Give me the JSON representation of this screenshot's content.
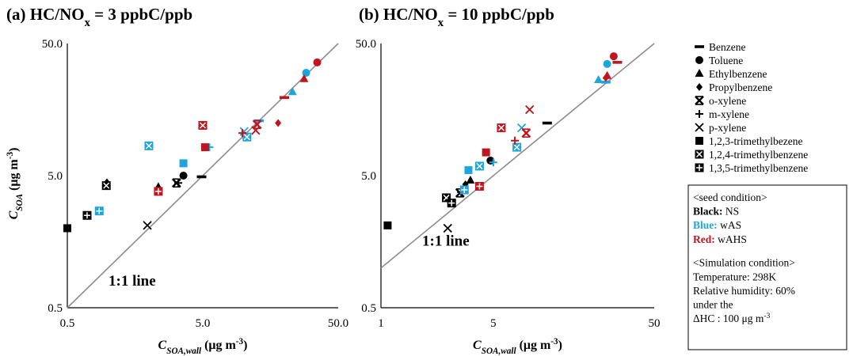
{
  "chart_data": [
    {
      "type": "scatter",
      "title": "(a) HC/NOx = 3 ppbC/ppb",
      "xlabel": "CSOA,wall (μg m-3)",
      "ylabel": "CSOA (μg m-3)",
      "xscale": "log",
      "yscale": "log",
      "xlim": [
        0.5,
        50
      ],
      "ylim": [
        0.5,
        50
      ],
      "xticks": [
        "0.5",
        "5.0",
        "50.0"
      ],
      "yticks": [
        "0.5",
        "5.0",
        "50.0"
      ],
      "reference_line": "1:1 line",
      "points": [
        {
          "compound": "benzene",
          "seed": "NS",
          "x": 4.9,
          "y": 4.9
        },
        {
          "compound": "toluene",
          "seed": "NS",
          "x": 3.6,
          "y": 5.0
        },
        {
          "compound": "ethylbenzene",
          "seed": "NS",
          "x": 2.35,
          "y": 4.1
        },
        {
          "compound": "propylbenzene",
          "seed": "NS",
          "x": 0.98,
          "y": 4.45
        },
        {
          "compound": "o-xylene",
          "seed": "NS",
          "x": 3.2,
          "y": 4.4
        },
        {
          "compound": "m-xylene",
          "seed": "NS",
          "x": 3.3,
          "y": 4.4
        },
        {
          "compound": "p-xylene",
          "seed": "NS",
          "x": 1.95,
          "y": 2.1
        },
        {
          "compound": "1,2,3-trimethylbezene",
          "seed": "NS",
          "x": 0.5,
          "y": 2.0
        },
        {
          "compound": "1,2,4-trimethylbenzene",
          "seed": "NS",
          "x": 0.97,
          "y": 4.2
        },
        {
          "compound": "1,3,5-trimethylbenzene",
          "seed": "NS",
          "x": 0.7,
          "y": 2.5
        },
        {
          "compound": "benzene",
          "seed": "wAS",
          "x": 13,
          "y": 13
        },
        {
          "compound": "toluene",
          "seed": "wAS",
          "x": 29,
          "y": 30
        },
        {
          "compound": "ethylbenzene",
          "seed": "wAS",
          "x": 23,
          "y": 21.5
        },
        {
          "compound": "m-xylene",
          "seed": "wAS",
          "x": 5.6,
          "y": 8.2
        },
        {
          "compound": "p-xylene",
          "seed": "wAS",
          "x": 10.1,
          "y": 10.8
        },
        {
          "compound": "1,2,3-trimethylbezene",
          "seed": "wAS",
          "x": 3.6,
          "y": 6.2
        },
        {
          "compound": "1,2,4-trimethylbenzene",
          "seed": "wAS",
          "x": 2.0,
          "y": 8.4
        },
        {
          "compound": "1,3,5-trimethylbenzene",
          "seed": "wAS",
          "x": 0.86,
          "y": 2.7
        },
        {
          "compound": "1,2,4-trimethylbenzene",
          "seed": "wAS",
          "x": 10.6,
          "y": 9.8
        },
        {
          "compound": "benzene",
          "seed": "wAHS",
          "x": 20,
          "y": 19.5
        },
        {
          "compound": "toluene",
          "seed": "wAHS",
          "x": 35,
          "y": 36
        },
        {
          "compound": "ethylbenzene",
          "seed": "wAHS",
          "x": 28,
          "y": 27
        },
        {
          "compound": "propylbenzene",
          "seed": "wAHS",
          "x": 18,
          "y": 12.5
        },
        {
          "compound": "o-xylene",
          "seed": "wAHS",
          "x": 12.6,
          "y": 12.2
        },
        {
          "compound": "m-xylene",
          "seed": "wAHS",
          "x": 9.8,
          "y": 10.5
        },
        {
          "compound": "1,2,3-trimethylbezene",
          "seed": "wAHS",
          "x": 5.2,
          "y": 8.2
        },
        {
          "compound": "1,2,4-trimethylbenzene",
          "seed": "wAHS",
          "x": 5.0,
          "y": 12.0
        },
        {
          "compound": "1,3,5-trimethylbenzene",
          "seed": "wAHS",
          "x": 2.35,
          "y": 3.8
        },
        {
          "compound": "p-xylene",
          "seed": "wAHS",
          "x": 12.3,
          "y": 11.0
        }
      ]
    },
    {
      "type": "scatter",
      "title": "(b) HC/NOx = 10 ppbC/ppb",
      "xlabel": "CSOA,wall (μg m-3)",
      "ylabel": "",
      "xscale": "log",
      "yscale": "log",
      "xlim": [
        1,
        50
      ],
      "ylim": [
        0.5,
        50
      ],
      "xticks": [
        "1",
        "5",
        "50"
      ],
      "yticks": [
        "0.5",
        "5.0",
        "50.0"
      ],
      "reference_line": "1:1 line",
      "points": [
        {
          "compound": "benzene",
          "seed": "NS",
          "x": 10.8,
          "y": 12.5
        },
        {
          "compound": "toluene",
          "seed": "NS",
          "x": 4.8,
          "y": 6.5
        },
        {
          "compound": "ethylbenzene",
          "seed": "NS",
          "x": 3.6,
          "y": 4.6
        },
        {
          "compound": "propylbenzene",
          "seed": "NS",
          "x": 3.35,
          "y": 4.3
        },
        {
          "compound": "o-xylene",
          "seed": "NS",
          "x": 3.1,
          "y": 3.7
        },
        {
          "compound": "m-xylene",
          "seed": "NS",
          "x": 3.15,
          "y": 3.75
        },
        {
          "compound": "p-xylene",
          "seed": "NS",
          "x": 2.6,
          "y": 2.0
        },
        {
          "compound": "1,2,3-trimethylbezene",
          "seed": "NS",
          "x": 1.1,
          "y": 2.1
        },
        {
          "compound": "1,2,4-trimethylbenzene",
          "seed": "NS",
          "x": 2.55,
          "y": 3.4
        },
        {
          "compound": "1,3,5-trimethylbenzene",
          "seed": "NS",
          "x": 2.75,
          "y": 3.1
        },
        {
          "compound": "benzene",
          "seed": "wAS",
          "x": 25,
          "y": 25.5
        },
        {
          "compound": "toluene",
          "seed": "wAS",
          "x": 25.5,
          "y": 35
        },
        {
          "compound": "ethylbenzene",
          "seed": "wAS",
          "x": 22.5,
          "y": 26.5
        },
        {
          "compound": "m-xylene",
          "seed": "wAS",
          "x": 5.0,
          "y": 6.3
        },
        {
          "compound": "p-xylene",
          "seed": "wAS",
          "x": 7.5,
          "y": 11.5
        },
        {
          "compound": "1,2,3-trimethylbezene",
          "seed": "wAS",
          "x": 3.5,
          "y": 5.5
        },
        {
          "compound": "1,2,4-trimethylbenzene",
          "seed": "wAS",
          "x": 4.1,
          "y": 5.9
        },
        {
          "compound": "1,3,5-trimethylbenzene",
          "seed": "wAS",
          "x": 3.3,
          "y": 3.9
        },
        {
          "compound": "1,2,4-trimethylbenzene",
          "seed": "wAS",
          "x": 7.0,
          "y": 8.2
        },
        {
          "compound": "benzene",
          "seed": "wAHS",
          "x": 29.5,
          "y": 36
        },
        {
          "compound": "toluene",
          "seed": "wAHS",
          "x": 28,
          "y": 40
        },
        {
          "compound": "ethylbenzene",
          "seed": "wAHS",
          "x": 25.5,
          "y": 28.5
        },
        {
          "compound": "propylbenzene",
          "seed": "wAHS",
          "x": 25.0,
          "y": 27.5
        },
        {
          "compound": "o-xylene",
          "seed": "wAHS",
          "x": 8.0,
          "y": 10.5
        },
        {
          "compound": "m-xylene",
          "seed": "wAHS",
          "x": 6.8,
          "y": 9.2
        },
        {
          "compound": "1,2,3-trimethylbezene",
          "seed": "wAHS",
          "x": 4.5,
          "y": 7.5
        },
        {
          "compound": "1,2,4-trimethylbenzene",
          "seed": "wAHS",
          "x": 5.6,
          "y": 11.5
        },
        {
          "compound": "1,3,5-trimethylbenzene",
          "seed": "wAHS",
          "x": 4.1,
          "y": 4.15
        },
        {
          "compound": "p-xylene",
          "seed": "wAHS",
          "x": 8.4,
          "y": 15.8
        }
      ]
    }
  ],
  "legend": {
    "items": [
      {
        "key": "benzene",
        "label": "Benzene",
        "icon": "dash-marker"
      },
      {
        "key": "toluene",
        "label": "Toluene",
        "icon": "circle-marker"
      },
      {
        "key": "ethylbenzene",
        "label": "Ethylbenzene",
        "icon": "triangle-marker"
      },
      {
        "key": "propylbenzene",
        "label": "Propylbenzene",
        "icon": "diamond-marker"
      },
      {
        "key": "o-xylene",
        "label": "o-xylene",
        "icon": "bowtie-x-marker"
      },
      {
        "key": "m-xylene",
        "label": "m-xylene",
        "icon": "plus-marker"
      },
      {
        "key": "p-xylene",
        "label": "p-xylene",
        "icon": "x-marker"
      },
      {
        "key": "1,2,3-trimethylbezene",
        "label": "1,2,3-trimethylbezene",
        "icon": "square-marker"
      },
      {
        "key": "1,2,4-trimethylbenzene",
        "label": "1,2,4-trimethylbenzene",
        "icon": "square-x-marker"
      },
      {
        "key": "1,3,5-trimethylbenzene",
        "label": "1,3,5-trimethylbenzene",
        "icon": "square-plus-marker"
      }
    ]
  },
  "colors": {
    "NS": "#000000",
    "wAS": "#1ea5dc",
    "wAHS": "#c0141e",
    "reference_line": "#8c8c8c"
  },
  "info_box": {
    "seed_header": "<seed condition>",
    "seed_lines": [
      {
        "key": "Black:",
        "value": " NS",
        "seed": "NS"
      },
      {
        "key": "Blue:",
        "value": " wAS",
        "seed": "wAS"
      },
      {
        "key": "Red:",
        "value": " wAHS",
        "seed": "wAHS"
      }
    ],
    "sim_header": "<Simulation condition>",
    "sim_lines": [
      "Temperature: 298K",
      "Relative humidity: 60%",
      "under the",
      "ΔHC : 100 μg m-3"
    ]
  }
}
